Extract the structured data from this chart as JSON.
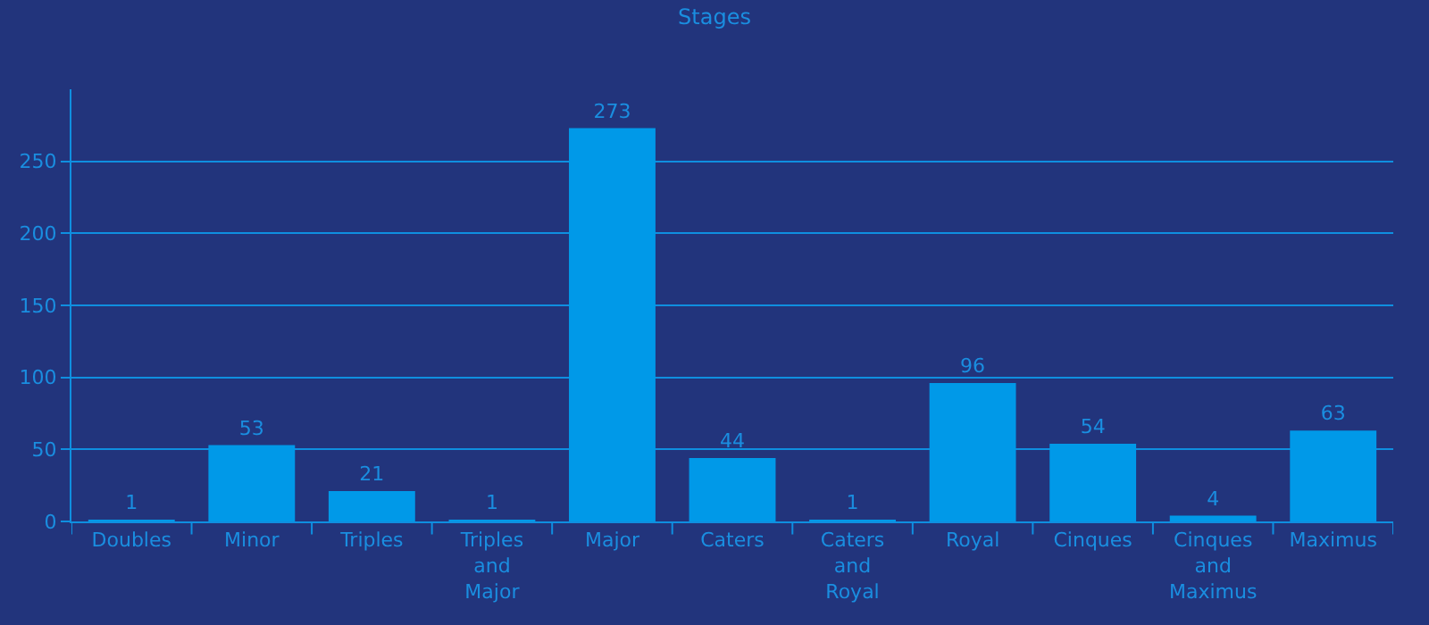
{
  "chart_data": {
    "type": "bar",
    "title": "Stages",
    "categories": [
      "Doubles",
      "Minor",
      "Triples",
      "Triples and Major",
      "Major",
      "Caters",
      "Caters and Royal",
      "Royal",
      "Cinques",
      "Cinques and Maximus",
      "Maximus"
    ],
    "values": [
      1,
      53,
      21,
      1,
      273,
      44,
      1,
      96,
      54,
      4,
      63
    ],
    "color": "#0099e8",
    "ylim": [
      0,
      300
    ],
    "yticks": [
      0,
      50,
      100,
      150,
      200,
      250
    ],
    "grid": "y",
    "data_labels": true
  }
}
